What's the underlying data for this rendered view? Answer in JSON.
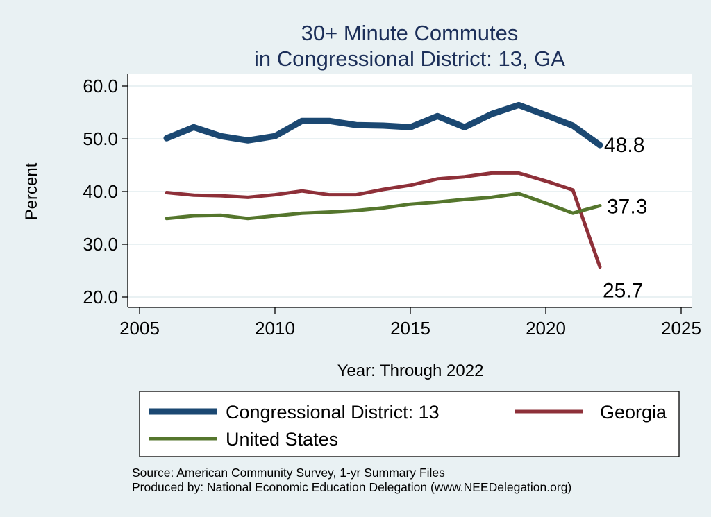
{
  "chart_data": {
    "type": "line",
    "title": [
      "30+ Minute Commutes",
      "in Congressional District:  13, GA"
    ],
    "xlabel": "Year: Through 2022",
    "ylabel": "Percent",
    "xlim": [
      2005,
      2025
    ],
    "ylim": [
      20,
      60
    ],
    "xticks": [
      2005,
      2010,
      2015,
      2020,
      2025
    ],
    "xtick_labels": [
      "2005",
      "2010",
      "2015",
      "2020",
      "2025"
    ],
    "yticks": [
      20,
      30,
      40,
      50,
      60
    ],
    "ytick_labels": [
      "20.0",
      "30.0",
      "40.0",
      "50.0",
      "60.0"
    ],
    "grid": "horizontal",
    "legend_position": "bottom",
    "x": [
      2006,
      2007,
      2008,
      2009,
      2010,
      2011,
      2012,
      2013,
      2014,
      2015,
      2016,
      2017,
      2018,
      2019,
      2020,
      2021,
      2022
    ],
    "series": [
      {
        "name": "Congressional District:  13",
        "color": "#1B4872",
        "weight": "thick",
        "values": [
          50.1,
          52.2,
          50.5,
          49.7,
          50.5,
          53.4,
          53.4,
          52.6,
          52.5,
          52.2,
          54.3,
          52.2,
          54.7,
          56.4,
          54.5,
          52.5,
          48.8
        ],
        "end_label": "48.8"
      },
      {
        "name": "Georgia",
        "color": "#8E3039",
        "weight": "medium",
        "values": [
          39.8,
          39.3,
          39.2,
          38.9,
          39.4,
          40.1,
          39.4,
          39.4,
          40.4,
          41.2,
          42.4,
          42.8,
          43.5,
          43.5,
          42.0,
          40.3,
          25.7
        ],
        "end_label": "25.7"
      },
      {
        "name": "United States",
        "color": "#55762D",
        "weight": "medium",
        "values": [
          34.9,
          35.4,
          35.5,
          34.9,
          35.4,
          35.9,
          36.1,
          36.4,
          36.9,
          37.6,
          38.0,
          38.5,
          38.9,
          39.6,
          37.8,
          35.9,
          37.3
        ],
        "end_label": "37.3"
      }
    ],
    "notes": [
      "Source: American Community Survey, 1-yr Summary Files",
      "Produced by: National Economic Education Delegation (www.NEEDelegation.org)"
    ]
  },
  "colors": {
    "background": "#E9F1F3",
    "plot_background": "#FFFFFF",
    "gridline": "#E9F1F3",
    "title": "#1C2F59"
  }
}
